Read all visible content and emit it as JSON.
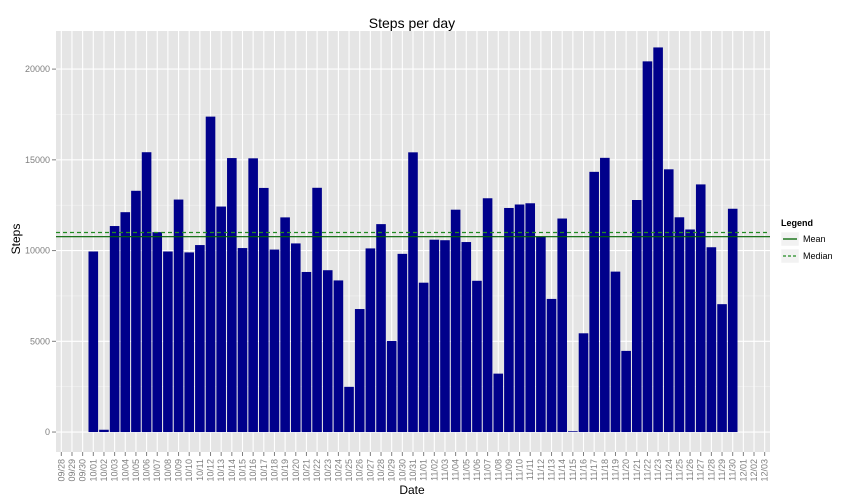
{
  "chart_data": {
    "type": "bar",
    "title": "Steps per day",
    "xlabel": "Date",
    "ylabel": "Steps",
    "ylim": [
      -1100,
      22100
    ],
    "yticks": [
      0,
      5000,
      10000,
      15000,
      20000
    ],
    "ytick_labels": [
      "0",
      "5000",
      "10000",
      "15000",
      "20000"
    ],
    "grid": true,
    "x_tick_labels": [
      "09/28",
      "09/29",
      "09/30",
      "10/01",
      "10/02",
      "10/03",
      "10/04",
      "10/05",
      "10/06",
      "10/07",
      "10/08",
      "10/09",
      "10/10",
      "10/11",
      "10/12",
      "10/13",
      "10/14",
      "10/15",
      "10/16",
      "10/17",
      "10/18",
      "10/19",
      "10/20",
      "10/21",
      "10/22",
      "10/23",
      "10/24",
      "10/25",
      "10/26",
      "10/27",
      "10/28",
      "10/29",
      "10/30",
      "10/31",
      "11/01",
      "11/02",
      "11/03",
      "11/04",
      "11/05",
      "11/06",
      "11/07",
      "11/08",
      "11/09",
      "11/10",
      "11/11",
      "11/12",
      "11/13",
      "11/14",
      "11/15",
      "11/16",
      "11/17",
      "11/18",
      "11/19",
      "11/20",
      "11/21",
      "11/22",
      "11/23",
      "11/24",
      "11/25",
      "11/26",
      "11/27",
      "11/28",
      "11/29",
      "11/30",
      "12/01",
      "12/02",
      "12/03"
    ],
    "categories": [
      "10/01",
      "10/02",
      "10/03",
      "10/04",
      "10/05",
      "10/06",
      "10/07",
      "10/08",
      "10/09",
      "10/10",
      "10/11",
      "10/12",
      "10/13",
      "10/14",
      "10/15",
      "10/16",
      "10/17",
      "10/18",
      "10/19",
      "10/20",
      "10/21",
      "10/22",
      "10/23",
      "10/24",
      "10/25",
      "10/26",
      "10/27",
      "10/28",
      "10/29",
      "10/30",
      "10/31",
      "11/01",
      "11/02",
      "11/03",
      "11/04",
      "11/05",
      "11/06",
      "11/07",
      "11/08",
      "11/09",
      "11/10",
      "11/11",
      "11/12",
      "11/13",
      "11/14",
      "11/15",
      "11/16",
      "11/17",
      "11/18",
      "11/19",
      "11/20",
      "11/21",
      "11/22",
      "11/23",
      "11/24",
      "11/25",
      "11/26",
      "11/27",
      "11/28",
      "11/29",
      "11/30"
    ],
    "values": [
      9950,
      126,
      11352,
      12116,
      13294,
      15420,
      11015,
      9950,
      12811,
      9900,
      10304,
      17382,
      12426,
      15098,
      10139,
      15084,
      13452,
      10056,
      11829,
      10395,
      8821,
      13460,
      8918,
      8355,
      2492,
      6778,
      10119,
      11458,
      5018,
      9819,
      15414,
      8230,
      10600,
      10571,
      12253,
      10470,
      8335,
      12883,
      3219,
      12348,
      12539,
      12607,
      10765,
      7336,
      11766,
      41,
      5441,
      14339,
      15110,
      8841,
      4472,
      12787,
      20427,
      21194,
      14478,
      11834,
      11162,
      13646,
      10183,
      7047,
      12305
    ],
    "bar_color": "#00008B",
    "lines": [
      {
        "name": "Mean",
        "value": 10766,
        "color": "#006400",
        "style": "solid"
      },
      {
        "name": "Median",
        "value": 10998,
        "color": "#228B22",
        "style": "dashed"
      }
    ],
    "legend": {
      "title": "Legend",
      "position": "right"
    },
    "panel_color": "#E5E5E5",
    "grid_color": "#FFFFFF"
  }
}
